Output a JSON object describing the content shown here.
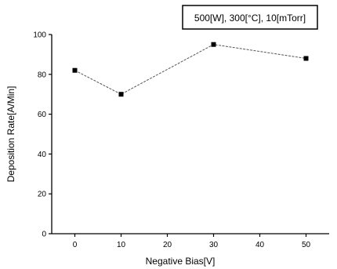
{
  "chart_data": {
    "type": "line",
    "title": "",
    "annotation": "500[W], 300[°C], 10[mTorr]",
    "xlabel": "Negative Bias[V]",
    "ylabel": "Deposition Rate[A/Min]",
    "xlim": [
      -5,
      55
    ],
    "ylim": [
      0,
      100
    ],
    "xticks": [
      0,
      10,
      20,
      30,
      40,
      50
    ],
    "yticks": [
      0,
      20,
      40,
      60,
      80,
      100
    ],
    "grid": false,
    "series": [
      {
        "x": [
          0,
          10,
          30,
          50
        ],
        "y": [
          82,
          70,
          95,
          88
        ]
      }
    ],
    "colors": {
      "line": "#555555",
      "marker": "#000000",
      "axis": "#000000"
    }
  }
}
